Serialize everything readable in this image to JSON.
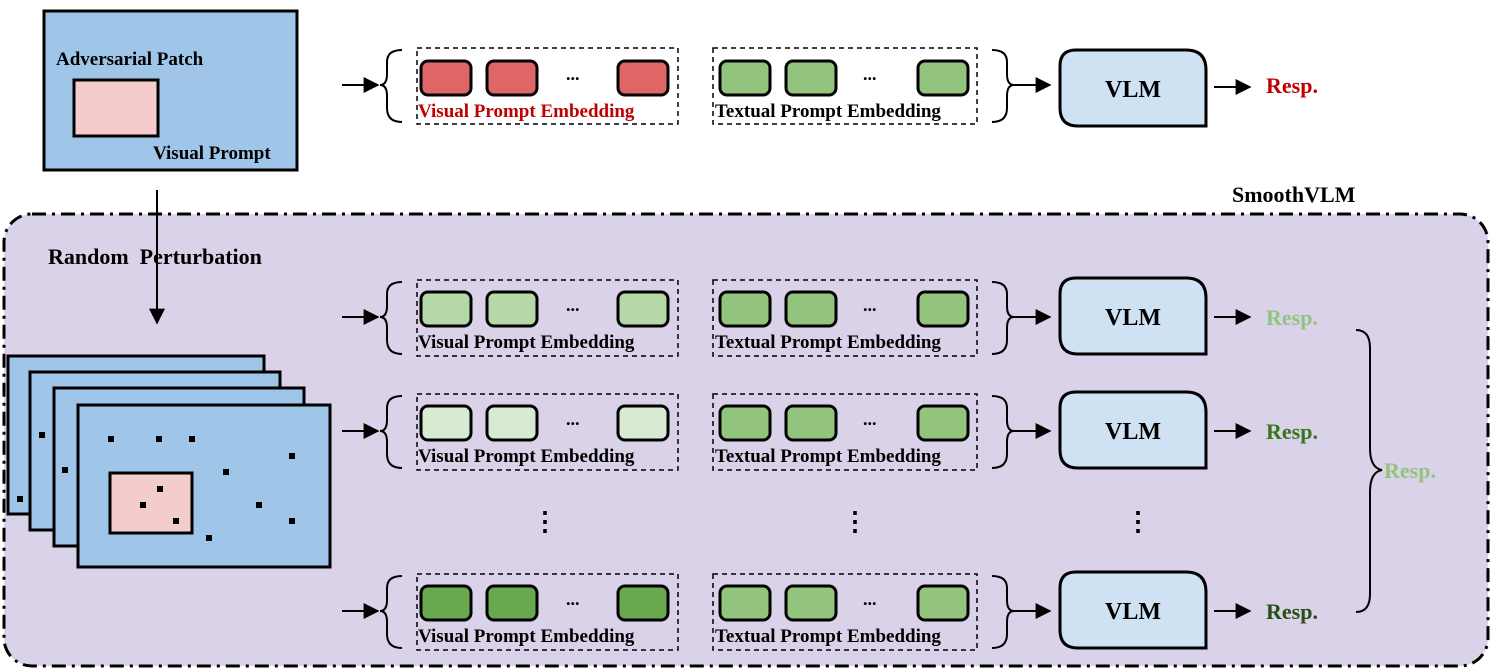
{
  "top": {
    "adversarial_patch_label": "Adversarial Patch",
    "visual_prompt_label": "Visual Prompt",
    "ellipsis": "...",
    "visual_embedding_label": "Visual Prompt Embedding",
    "textual_embedding_label": "Textual Prompt Embedding",
    "vlm_label": "VLM",
    "resp_label": "Resp.",
    "colors": {
      "adversarial_token": "#e06666",
      "text_token": "#93c47d",
      "resp": "#c00000",
      "patch": "#f4cccc",
      "image_bg": "#9fc5e8"
    }
  },
  "smooth": {
    "title": "SmoothVLM",
    "perturbation_label": "Random  Perturbation",
    "vertical_ellipsis": "⋮",
    "aggregate_resp_label": "Resp.",
    "aggregate_resp_color": "#93c47d",
    "background_color": "#d9d2e9",
    "rows": [
      {
        "visual_label": "Visual Prompt Embedding",
        "textual_label": "Textual Prompt Embedding",
        "ellipsis": "...",
        "vlm_label": "VLM",
        "resp_label": "Resp.",
        "visual_color": "#b6d7a8",
        "textual_color": "#93c47d",
        "resp_color": "#93c47d"
      },
      {
        "visual_label": "Visual Prompt Embedding",
        "textual_label": "Textual Prompt Embedding",
        "ellipsis": "...",
        "vlm_label": "VLM",
        "resp_label": "Resp.",
        "visual_color": "#d9ead3",
        "textual_color": "#93c47d",
        "resp_color": "#38761d"
      },
      {
        "visual_label": "Visual Prompt Embedding",
        "textual_label": "Textual Prompt Embedding",
        "ellipsis": "...",
        "vlm_label": "VLM",
        "resp_label": "Resp.",
        "visual_color": "#6aa84f",
        "textual_color": "#93c47d",
        "resp_color": "#274e13"
      }
    ]
  }
}
